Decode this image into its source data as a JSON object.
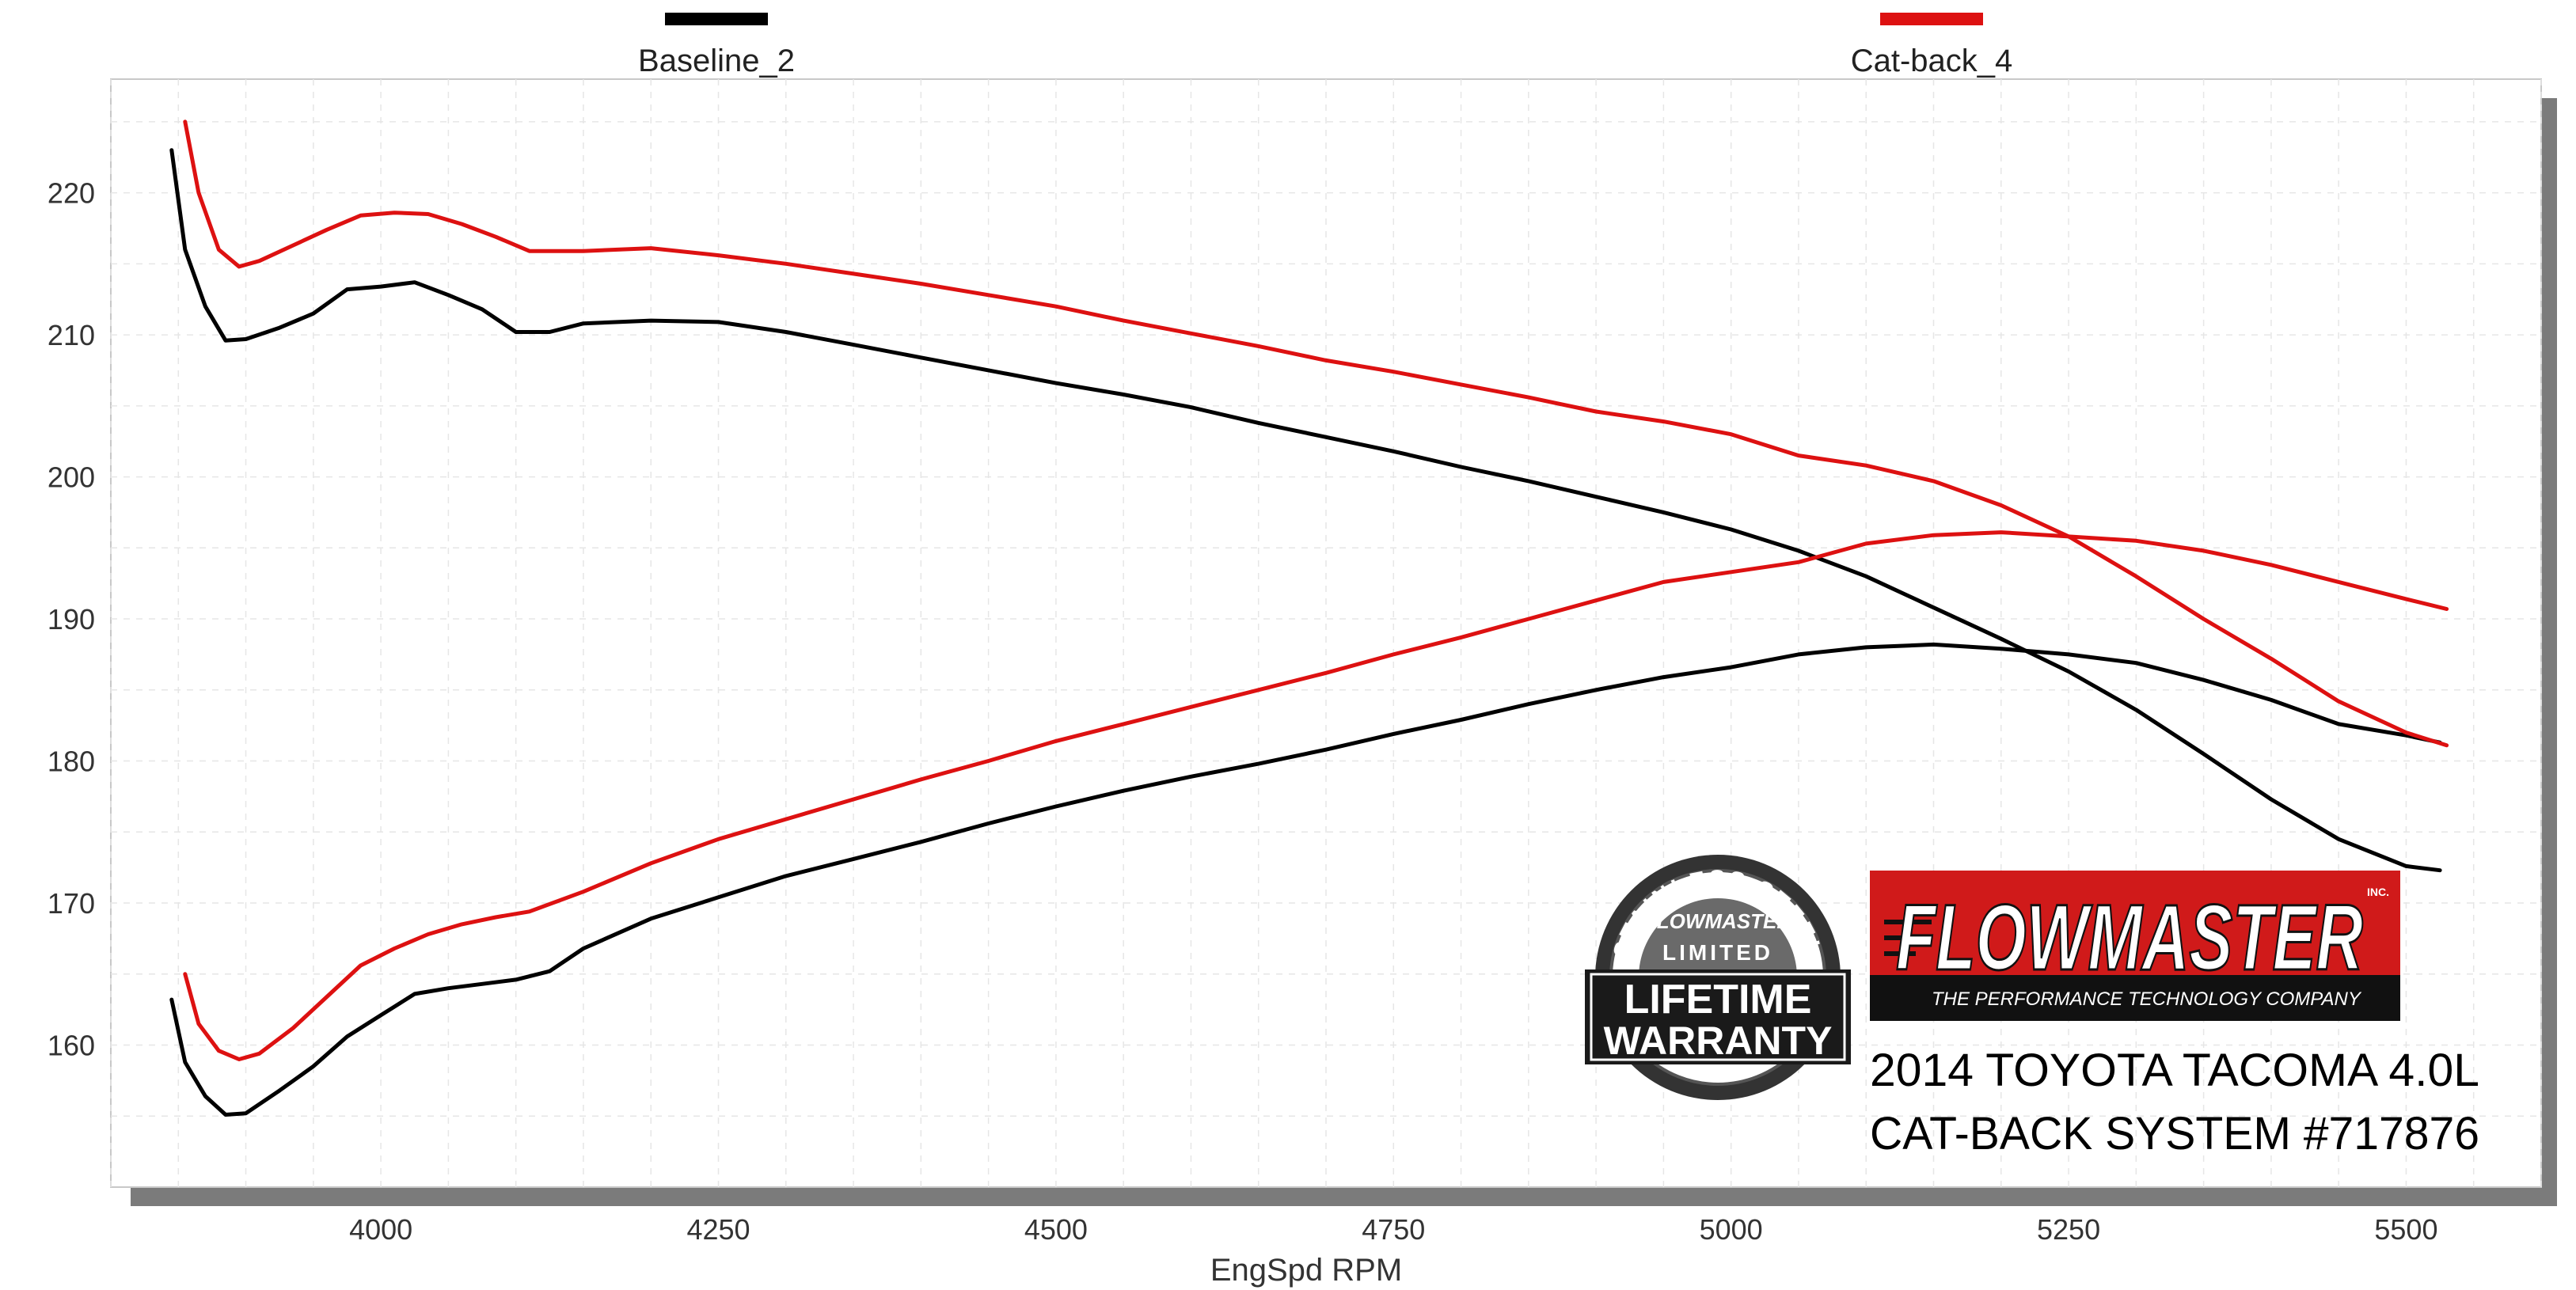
{
  "chart_data": {
    "type": "line",
    "xlabel": "EngSpd  RPM",
    "ylabel": "",
    "title": "",
    "xlim": [
      3800,
      5600
    ],
    "ylim": [
      150,
      228
    ],
    "xticks": [
      4000,
      4250,
      4500,
      4750,
      5000,
      5250,
      5500
    ],
    "yticks": [
      160,
      170,
      180,
      190,
      200,
      210,
      220
    ],
    "grid": true,
    "legend_position": "top",
    "legend": [
      {
        "label": "Baseline_2",
        "color": "#000000"
      },
      {
        "label": "Cat-back_4",
        "color": "#dd1111"
      }
    ],
    "series": [
      {
        "name": "Baseline_2",
        "measure": "torque",
        "color": "#000000",
        "points": [
          [
            3845,
            223
          ],
          [
            3855,
            216
          ],
          [
            3870,
            212
          ],
          [
            3885,
            209.6
          ],
          [
            3900,
            209.7
          ],
          [
            3925,
            210.5
          ],
          [
            3950,
            211.5
          ],
          [
            3975,
            213.2
          ],
          [
            4000,
            213.4
          ],
          [
            4025,
            213.7
          ],
          [
            4050,
            212.8
          ],
          [
            4075,
            211.8
          ],
          [
            4100,
            210.2
          ],
          [
            4125,
            210.2
          ],
          [
            4150,
            210.8
          ],
          [
            4200,
            211.0
          ],
          [
            4250,
            210.9
          ],
          [
            4300,
            210.2
          ],
          [
            4350,
            209.3
          ],
          [
            4400,
            208.4
          ],
          [
            4450,
            207.5
          ],
          [
            4500,
            206.6
          ],
          [
            4550,
            205.8
          ],
          [
            4600,
            204.9
          ],
          [
            4650,
            203.8
          ],
          [
            4700,
            202.8
          ],
          [
            4750,
            201.8
          ],
          [
            4800,
            200.7
          ],
          [
            4850,
            199.7
          ],
          [
            4900,
            198.6
          ],
          [
            4950,
            197.5
          ],
          [
            5000,
            196.3
          ],
          [
            5050,
            194.8
          ],
          [
            5100,
            193.0
          ],
          [
            5150,
            190.8
          ],
          [
            5200,
            188.6
          ],
          [
            5250,
            186.3
          ],
          [
            5300,
            183.6
          ],
          [
            5350,
            180.5
          ],
          [
            5400,
            177.3
          ],
          [
            5450,
            174.5
          ],
          [
            5500,
            172.6
          ],
          [
            5525,
            172.3
          ]
        ]
      },
      {
        "name": "Baseline_2",
        "measure": "power",
        "color": "#000000",
        "points": [
          [
            3845,
            163.2
          ],
          [
            3855,
            158.8
          ],
          [
            3870,
            156.4
          ],
          [
            3885,
            155.1
          ],
          [
            3900,
            155.2
          ],
          [
            3925,
            156.8
          ],
          [
            3950,
            158.5
          ],
          [
            3975,
            160.6
          ],
          [
            4000,
            162.1
          ],
          [
            4025,
            163.6
          ],
          [
            4050,
            164.0
          ],
          [
            4075,
            164.3
          ],
          [
            4100,
            164.6
          ],
          [
            4125,
            165.2
          ],
          [
            4150,
            166.8
          ],
          [
            4200,
            168.9
          ],
          [
            4250,
            170.4
          ],
          [
            4300,
            171.9
          ],
          [
            4350,
            173.1
          ],
          [
            4400,
            174.3
          ],
          [
            4450,
            175.6
          ],
          [
            4500,
            176.8
          ],
          [
            4550,
            177.9
          ],
          [
            4600,
            178.9
          ],
          [
            4650,
            179.8
          ],
          [
            4700,
            180.8
          ],
          [
            4750,
            181.9
          ],
          [
            4800,
            182.9
          ],
          [
            4850,
            184.0
          ],
          [
            4900,
            185.0
          ],
          [
            4950,
            185.9
          ],
          [
            5000,
            186.6
          ],
          [
            5050,
            187.5
          ],
          [
            5100,
            188.0
          ],
          [
            5150,
            188.2
          ],
          [
            5200,
            187.9
          ],
          [
            5250,
            187.5
          ],
          [
            5300,
            186.9
          ],
          [
            5350,
            185.7
          ],
          [
            5400,
            184.3
          ],
          [
            5450,
            182.6
          ],
          [
            5500,
            181.8
          ],
          [
            5525,
            181.3
          ]
        ]
      },
      {
        "name": "Cat-back_4",
        "measure": "torque",
        "color": "#dd1111",
        "points": [
          [
            3855,
            225
          ],
          [
            3865,
            220
          ],
          [
            3880,
            216
          ],
          [
            3895,
            214.8
          ],
          [
            3910,
            215.2
          ],
          [
            3935,
            216.3
          ],
          [
            3960,
            217.4
          ],
          [
            3985,
            218.4
          ],
          [
            4010,
            218.6
          ],
          [
            4035,
            218.5
          ],
          [
            4060,
            217.8
          ],
          [
            4085,
            216.9
          ],
          [
            4110,
            215.9
          ],
          [
            4150,
            215.9
          ],
          [
            4200,
            216.1
          ],
          [
            4250,
            215.6
          ],
          [
            4300,
            215.0
          ],
          [
            4350,
            214.3
          ],
          [
            4400,
            213.6
          ],
          [
            4450,
            212.8
          ],
          [
            4500,
            212.0
          ],
          [
            4550,
            211.0
          ],
          [
            4600,
            210.1
          ],
          [
            4650,
            209.2
          ],
          [
            4700,
            208.2
          ],
          [
            4750,
            207.4
          ],
          [
            4800,
            206.5
          ],
          [
            4850,
            205.6
          ],
          [
            4900,
            204.6
          ],
          [
            4950,
            203.9
          ],
          [
            5000,
            203.0
          ],
          [
            5050,
            201.5
          ],
          [
            5100,
            200.8
          ],
          [
            5150,
            199.7
          ],
          [
            5200,
            198.0
          ],
          [
            5250,
            195.8
          ],
          [
            5300,
            193.0
          ],
          [
            5350,
            190.0
          ],
          [
            5400,
            187.2
          ],
          [
            5450,
            184.2
          ],
          [
            5500,
            182.0
          ],
          [
            5530,
            181.1
          ]
        ]
      },
      {
        "name": "Cat-back_4",
        "measure": "power",
        "color": "#dd1111",
        "points": [
          [
            3855,
            165
          ],
          [
            3865,
            161.5
          ],
          [
            3880,
            159.6
          ],
          [
            3895,
            159.0
          ],
          [
            3910,
            159.4
          ],
          [
            3935,
            161.2
          ],
          [
            3960,
            163.4
          ],
          [
            3985,
            165.6
          ],
          [
            4010,
            166.8
          ],
          [
            4035,
            167.8
          ],
          [
            4060,
            168.5
          ],
          [
            4085,
            169.0
          ],
          [
            4110,
            169.4
          ],
          [
            4150,
            170.8
          ],
          [
            4200,
            172.8
          ],
          [
            4250,
            174.5
          ],
          [
            4300,
            175.9
          ],
          [
            4350,
            177.3
          ],
          [
            4400,
            178.7
          ],
          [
            4450,
            180.0
          ],
          [
            4500,
            181.4
          ],
          [
            4550,
            182.6
          ],
          [
            4600,
            183.8
          ],
          [
            4650,
            185.0
          ],
          [
            4700,
            186.2
          ],
          [
            4750,
            187.5
          ],
          [
            4800,
            188.7
          ],
          [
            4850,
            190.0
          ],
          [
            4900,
            191.3
          ],
          [
            4950,
            192.6
          ],
          [
            5000,
            193.3
          ],
          [
            5050,
            194.0
          ],
          [
            5100,
            195.3
          ],
          [
            5150,
            195.9
          ],
          [
            5200,
            196.1
          ],
          [
            5250,
            195.8
          ],
          [
            5300,
            195.5
          ],
          [
            5350,
            194.8
          ],
          [
            5400,
            193.8
          ],
          [
            5450,
            192.6
          ],
          [
            5500,
            191.4
          ],
          [
            5530,
            190.7
          ]
        ]
      }
    ]
  },
  "branding": {
    "brand_name": "FLOWMASTER",
    "brand_suffix": "INC.",
    "brand_tagline": "THE PERFORMANCE TECHNOLOGY COMPANY",
    "badge_arc_text": "STAINLESS STEEL",
    "badge_brand": "FLOWMASTER",
    "badge_line1": "LIMITED",
    "badge_line2": "LIFETIME",
    "badge_line3": "WARRANTY",
    "caption_line1": "2014 TOYOTA TACOMA 4.0L",
    "caption_line2": "CAT-BACK SYSTEM #717876"
  }
}
